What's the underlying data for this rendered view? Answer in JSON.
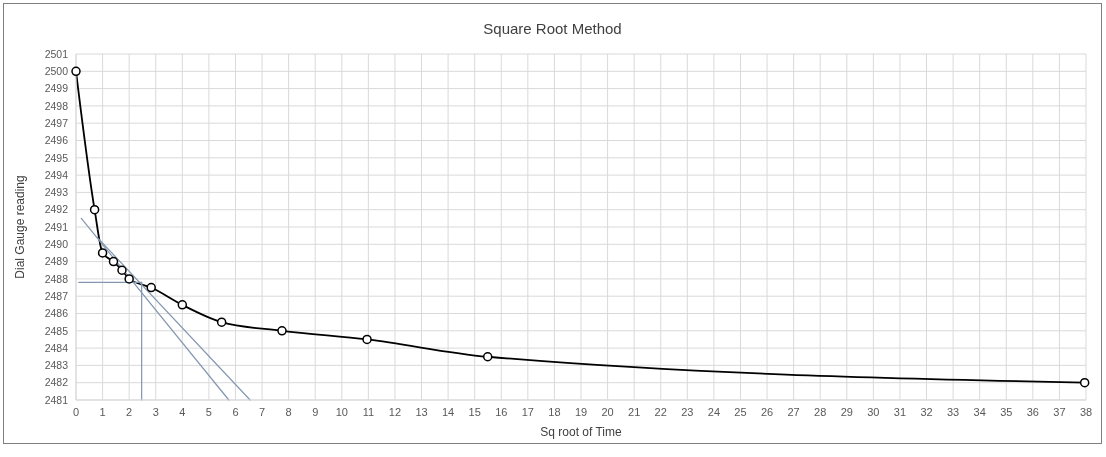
{
  "chart_data": {
    "type": "line",
    "title": "Square Root Method",
    "xlabel": "Sq root of Time",
    "ylabel": "Dial Gauge reading",
    "series": [
      {
        "color": "#000000",
        "x": [
          0,
          0.7,
          1,
          1.41,
          1.73,
          2,
          2.83,
          4,
          5.48,
          7.75,
          10.95,
          15.49,
          37.95
        ],
        "values": [
          2500,
          2492,
          2489.5,
          2489,
          2488.5,
          2488,
          2487.5,
          2486.5,
          2485.5,
          2485,
          2484.5,
          2483.5,
          2482
        ]
      },
      {
        "color": "#8497b0",
        "marker": "none",
        "x": [
          0.2,
          5.75
        ],
        "values": [
          2491.5,
          2481
        ]
      },
      {
        "color": "#8497b0",
        "marker": "none",
        "x": [
          0.8,
          6.55
        ],
        "values": [
          2490.4,
          2481
        ]
      },
      {
        "color": "#8497b0",
        "marker": "none",
        "x": [
          0.1,
          2.47
        ],
        "values": [
          2487.8,
          2487.8
        ]
      },
      {
        "color": "#8497b0",
        "marker": "none",
        "x": [
          2.47,
          2.47
        ],
        "values": [
          2487.8,
          2481
        ]
      }
    ],
    "xlim": [
      0,
      38
    ],
    "xticks": [
      0,
      1,
      2,
      3,
      4,
      5,
      6,
      7,
      8,
      9,
      10,
      11,
      12,
      13,
      14,
      15,
      16,
      17,
      18,
      19,
      20,
      21,
      22,
      23,
      24,
      25,
      26,
      27,
      28,
      29,
      30,
      31,
      32,
      33,
      34,
      35,
      36,
      37,
      38
    ],
    "ylim": [
      2481,
      2501
    ],
    "yticks": [
      2481,
      2482,
      2483,
      2484,
      2485,
      2486,
      2487,
      2488,
      2489,
      2490,
      2491,
      2492,
      2493,
      2494,
      2495,
      2496,
      2497,
      2498,
      2499,
      2500,
      2501
    ],
    "grid": true,
    "marker": "circle",
    "line_style": "solid"
  }
}
